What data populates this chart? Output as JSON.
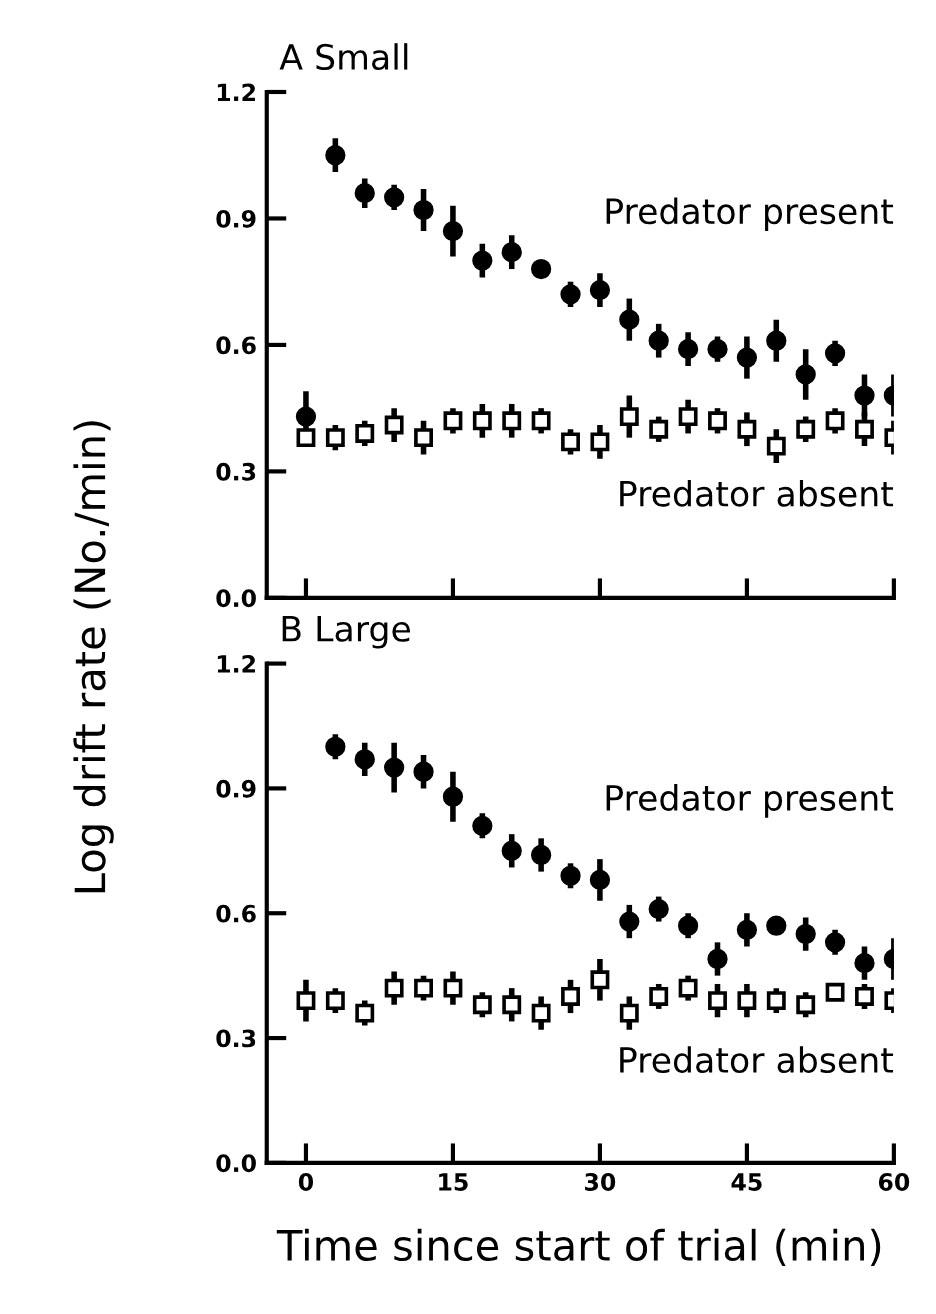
{
  "chart_data": [
    {
      "type": "scatter",
      "title": "A Small",
      "ylabel": "Log drift rate (No./min)",
      "x": [
        0,
        3,
        6,
        9,
        12,
        15,
        18,
        21,
        24,
        27,
        30,
        33,
        36,
        39,
        42,
        45,
        48,
        51,
        54,
        57,
        60
      ],
      "xlim": [
        -4,
        60
      ],
      "xticks": [
        0,
        15,
        30,
        45,
        60
      ],
      "ylim": [
        0,
        1.2
      ],
      "yticks": [
        {
          "value": 0,
          "label": "0.0"
        },
        0.3,
        0.6,
        0.9,
        1.2
      ],
      "tick_labels": "y",
      "legend": false,
      "grid": false,
      "series": [
        {
          "name": "Predator present",
          "color": "#000000",
          "marker": "circle",
          "values": [
            0.43,
            1.05,
            0.96,
            0.95,
            0.92,
            0.87,
            0.8,
            0.82,
            0.78,
            0.72,
            0.73,
            0.66,
            0.61,
            0.59,
            0.59,
            0.57,
            0.61,
            0.53,
            0.58,
            0.48,
            0.48
          ],
          "errors": [
            0.06,
            0.04,
            0.035,
            0.03,
            0.05,
            0.06,
            0.04,
            0.04,
            null,
            0.03,
            0.04,
            0.05,
            0.04,
            0.04,
            0.03,
            0.05,
            0.05,
            0.06,
            0.03,
            0.05,
            0.05
          ]
        },
        {
          "name": "Predator absent",
          "color": "#000000",
          "marker": "square",
          "values": [
            0.38,
            0.38,
            0.39,
            0.41,
            0.38,
            0.42,
            0.42,
            0.42,
            0.42,
            0.37,
            0.37,
            0.43,
            0.4,
            0.43,
            0.42,
            0.4,
            0.36,
            0.4,
            0.42,
            0.4,
            0.38
          ],
          "errors": [
            0.02,
            0.03,
            0.03,
            0.04,
            0.04,
            0.03,
            0.04,
            0.04,
            0.03,
            0.03,
            0.04,
            0.05,
            0.03,
            0.04,
            0.03,
            0.04,
            0.04,
            0.03,
            0.03,
            0.04,
            0.04
          ]
        }
      ]
    },
    {
      "type": "scatter",
      "title": "B Large",
      "xlabel": "Time since start of trial (min)",
      "x": [
        0,
        3,
        6,
        9,
        12,
        15,
        18,
        21,
        24,
        27,
        30,
        33,
        36,
        39,
        42,
        45,
        48,
        51,
        54,
        57,
        60
      ],
      "xlim": [
        -4,
        60
      ],
      "xticks": [
        0,
        15,
        30,
        45,
        60
      ],
      "ylim": [
        0,
        1.2
      ],
      "yticks": [
        {
          "value": 0,
          "label": "0.0"
        },
        0.3,
        0.6,
        0.9,
        1.2
      ],
      "legend": false,
      "grid": false,
      "series": [
        {
          "name": "Predator present",
          "color": "#000000",
          "marker": "circle",
          "values": [
            null,
            1.0,
            0.97,
            0.95,
            0.94,
            0.88,
            0.81,
            0.75,
            0.74,
            0.69,
            0.68,
            0.58,
            0.61,
            0.57,
            0.49,
            0.56,
            0.57,
            0.55,
            0.53,
            0.48,
            0.49
          ],
          "errors": [
            null,
            0.03,
            0.04,
            0.06,
            0.04,
            0.06,
            0.03,
            0.04,
            0.04,
            0.03,
            0.05,
            0.04,
            0.03,
            0.03,
            0.04,
            0.04,
            null,
            0.04,
            0.03,
            0.04,
            0.05
          ]
        },
        {
          "name": "Predator absent",
          "color": "#000000",
          "marker": "square",
          "values": [
            0.39,
            0.39,
            0.36,
            0.42,
            0.42,
            0.42,
            0.38,
            0.38,
            0.36,
            0.4,
            0.44,
            0.36,
            0.4,
            0.42,
            0.39,
            0.39,
            0.39,
            0.38,
            0.41,
            0.4,
            0.39
          ],
          "errors": [
            0.05,
            0.03,
            0.03,
            0.04,
            0.03,
            0.04,
            0.03,
            0.04,
            0.04,
            0.04,
            0.05,
            0.04,
            0.03,
            0.03,
            0.04,
            0.04,
            0.03,
            0.03,
            null,
            0.03,
            0.03
          ]
        }
      ]
    }
  ]
}
